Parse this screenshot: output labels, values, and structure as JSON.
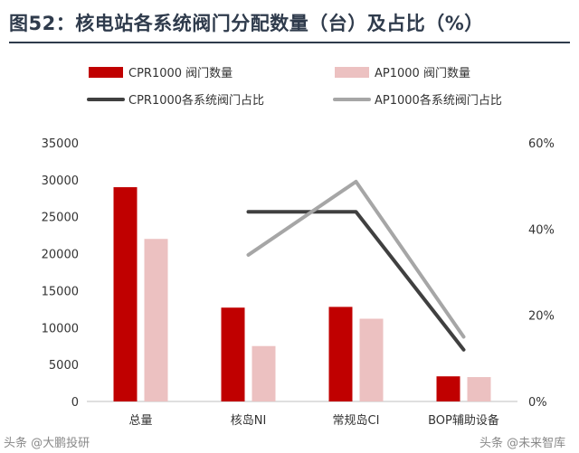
{
  "title": "图52：核电站各系统阀门分配数量（台）及占比（%）",
  "chart_data": {
    "type": "bar",
    "categories": [
      "总量",
      "核岛NI",
      "常规岛CI",
      "BOP辅助设备"
    ],
    "series": [
      {
        "name": "CPR1000 阀门数量",
        "kind": "bar",
        "axis": "left",
        "color": "#c00000",
        "values": [
          29000,
          12700,
          12800,
          3400
        ]
      },
      {
        "name": "AP1000 阀门数量",
        "kind": "bar",
        "axis": "left",
        "color": "#ecc1c1",
        "values": [
          22000,
          7500,
          11200,
          3300
        ]
      },
      {
        "name": "CPR1000各系统阀门占比",
        "kind": "line",
        "axis": "right",
        "color": "#404040",
        "values": [
          null,
          44,
          44,
          12
        ]
      },
      {
        "name": "AP1000各系统阀门占比",
        "kind": "line",
        "axis": "right",
        "color": "#a6a6a6",
        "values": [
          null,
          34,
          51,
          15
        ]
      }
    ],
    "y_left": {
      "min": 0,
      "max": 35000,
      "ticks": [
        0,
        5000,
        10000,
        15000,
        20000,
        25000,
        30000,
        35000
      ]
    },
    "y_right": {
      "min": 0,
      "max": 60,
      "ticks": [
        "0%",
        "20%",
        "40%",
        "60%"
      ]
    },
    "grid": false,
    "legend": "top"
  },
  "watermark_left": "头条 @大鹏投研",
  "watermark_right": "头条 @未来智库"
}
